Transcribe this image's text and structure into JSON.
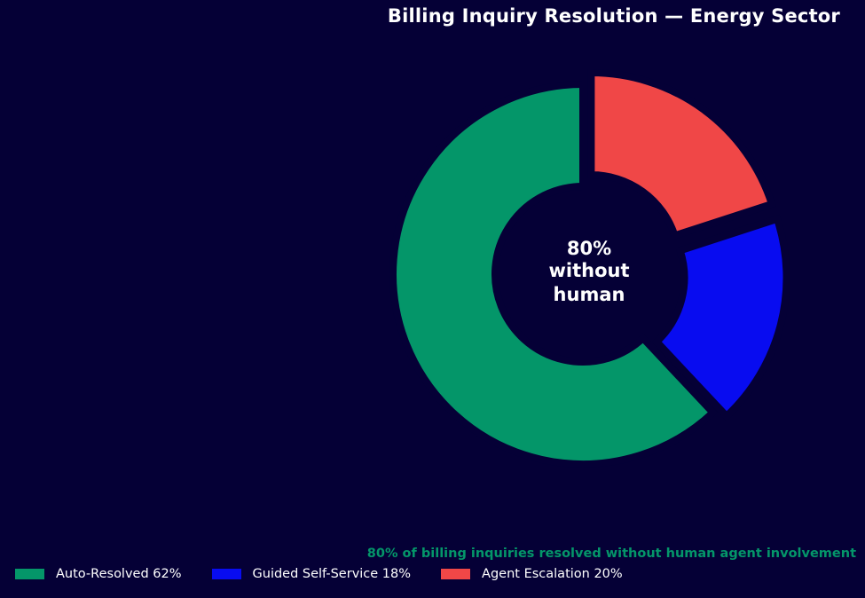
{
  "chart_data": {
    "type": "pie",
    "variant": "donut",
    "title": "Billing Inquiry Resolution — Energy Sector",
    "center_label": [
      "80%",
      "without",
      "human"
    ],
    "annotation": "80% of billing inquiries resolved without human agent involvement",
    "slices": [
      {
        "name": "Auto-Resolved",
        "value": 62,
        "legend": "Auto-Resolved 62%",
        "color": "#049669",
        "exploded": false
      },
      {
        "name": "Guided Self-Service",
        "value": 18,
        "legend": "Guided Self-Service 18%",
        "color": "#080cf0",
        "exploded": true
      },
      {
        "name": "Agent Escalation",
        "value": 20,
        "legend": "Agent Escalation 20%",
        "color": "#f04747",
        "exploded": true
      }
    ],
    "legend_position": "bottom-left",
    "colors": {
      "background": "#050036",
      "annotation": "#049669",
      "text": "#ffffff"
    }
  }
}
